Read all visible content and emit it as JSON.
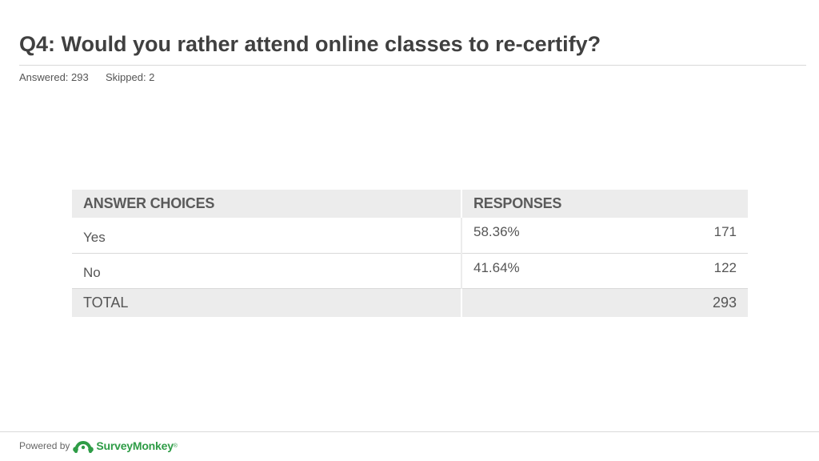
{
  "question": {
    "title": "Q4: Would you rather attend online classes to re-certify?",
    "answered_label": "Answered: 293",
    "skipped_label": "Skipped: 2"
  },
  "table": {
    "headers": {
      "choices": "ANSWER CHOICES",
      "responses": "RESPONSES"
    },
    "rows": [
      {
        "choice": "Yes",
        "percent": "58.36%",
        "count": "171"
      },
      {
        "choice": "No",
        "percent": "41.64%",
        "count": "122"
      }
    ],
    "total": {
      "label": "TOTAL",
      "count": "293"
    }
  },
  "footer": {
    "powered_by": "Powered by",
    "brand": "SurveyMonkey",
    "trademark": "®",
    "logo_icon": "surveymonkey-logo-icon",
    "brand_color": "#2e9c46"
  }
}
